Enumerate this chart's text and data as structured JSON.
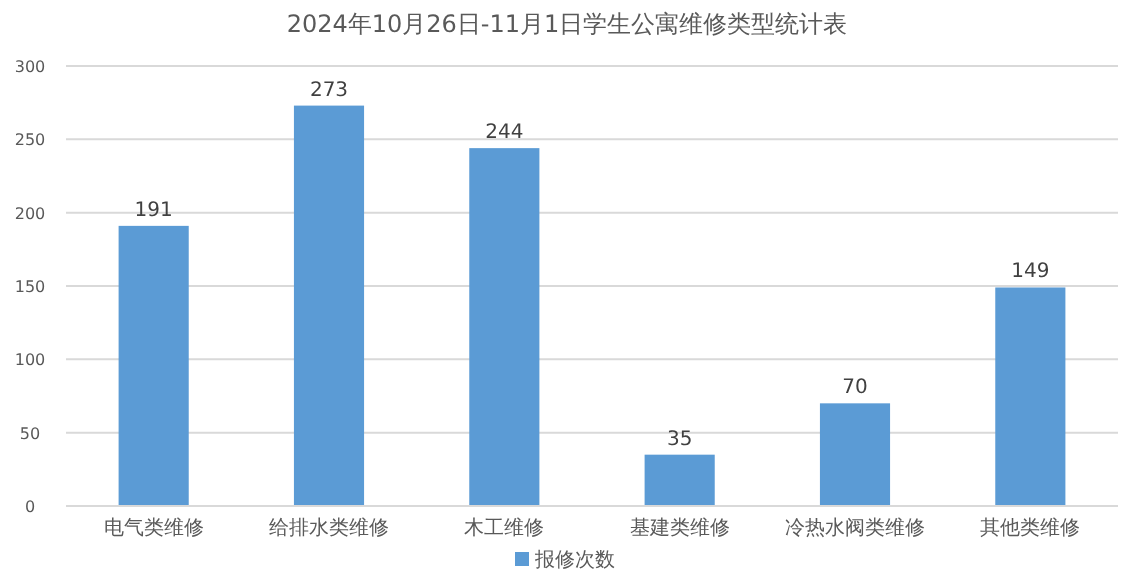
{
  "chart_data": {
    "type": "bar",
    "title": "2024年10月26日-11月1日学生公寓维修类型统计表",
    "categories": [
      "电气类维修",
      "给排水类维修",
      "木工维修",
      "基建类维修",
      "冷热水阀类维修",
      "其他类维修"
    ],
    "series": [
      {
        "name": "报修次数",
        "color": "#5b9bd5",
        "values": [
          191,
          273,
          244,
          35,
          70,
          149
        ]
      }
    ],
    "ylim": [
      0,
      300
    ],
    "yticks": [
      0,
      50,
      100,
      150,
      200,
      250,
      300
    ],
    "grid": "y",
    "legend": "bottom",
    "data_labels": true
  }
}
